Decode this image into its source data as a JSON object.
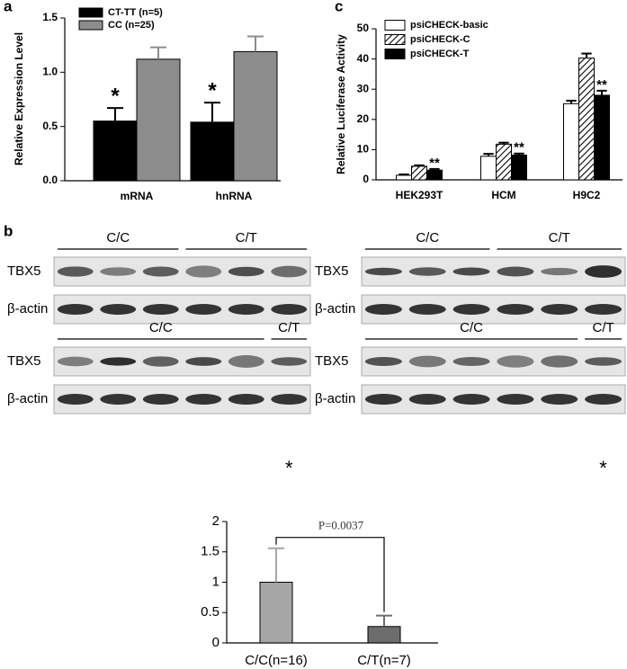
{
  "panel_labels": [
    "a",
    "b",
    "c"
  ],
  "chart_data": [
    {
      "type": "bar",
      "y_label": "Relative Expression Level",
      "categories": [
        "mRNA",
        "hnRNA"
      ],
      "series": [
        {
          "name": "CT-TT (n=5)",
          "color": "#000000",
          "values": [
            0.55,
            0.54
          ],
          "errors": [
            0.12,
            0.18
          ]
        },
        {
          "name": "CC (n=25)",
          "color": "#8c8c8c",
          "values": [
            1.12,
            1.19
          ],
          "errors": [
            0.11,
            0.14
          ]
        }
      ],
      "annotations": [
        "*",
        "*"
      ],
      "ylim": [
        0,
        1.5
      ],
      "yticks": [
        {
          "value": 0,
          "label": "0.0"
        },
        0.5,
        {
          "value": 1,
          "label": "1.0"
        },
        1.5
      ]
    },
    {
      "type": "bar",
      "y_label": "Relative Luciferase Activity",
      "categories": [
        "HEK293T",
        "HCM",
        "H9C2"
      ],
      "series": [
        {
          "name": "psiCHECK-basic",
          "color": "#ffffff",
          "values": [
            1.5,
            7.8,
            25.2
          ],
          "errors": [
            0.3,
            0.8,
            1.0
          ]
        },
        {
          "name": "psiCHECK-C",
          "color": "#ffffff",
          "pattern": "hatch",
          "values": [
            4.5,
            11.8,
            40.3
          ],
          "errors": [
            0.3,
            0.5,
            1.5
          ]
        },
        {
          "name": "psiCHECK-T",
          "color": "#000000",
          "values": [
            3.2,
            8.2,
            28.0
          ],
          "errors": [
            0.4,
            0.5,
            1.5
          ]
        }
      ],
      "annotations": [
        "**",
        "**",
        "**"
      ],
      "ylim": [
        0,
        50
      ],
      "yticks": [
        0,
        10,
        20,
        30,
        40,
        50
      ]
    },
    {
      "type": "bar",
      "categories": [
        "C/C(n=16)",
        "C/T(n=7)"
      ],
      "values": [
        1.0,
        0.27
      ],
      "errors": [
        0.56,
        0.18
      ],
      "colors": [
        "#a6a6a6",
        "#6d6d6d"
      ],
      "annotation": "P=0.0037",
      "ylim": [
        0,
        2
      ],
      "yticks": [
        0,
        0.5,
        1,
        1.5,
        2
      ]
    }
  ],
  "blots": [
    {
      "groups": [
        "C/C",
        "C/T"
      ],
      "rows": [
        "TBX5",
        "β-actin"
      ]
    },
    {
      "groups": [
        "C/C",
        "C/T"
      ],
      "rows": [
        "TBX5",
        "β-actin"
      ]
    },
    {
      "groups": [
        "C/C",
        "C/T"
      ],
      "rows": [
        "TBX5",
        "β-actin"
      ],
      "note": "*"
    },
    {
      "groups": [
        "C/C",
        "C/T"
      ],
      "rows": [
        "TBX5",
        "β-actin"
      ],
      "note": "*"
    }
  ]
}
